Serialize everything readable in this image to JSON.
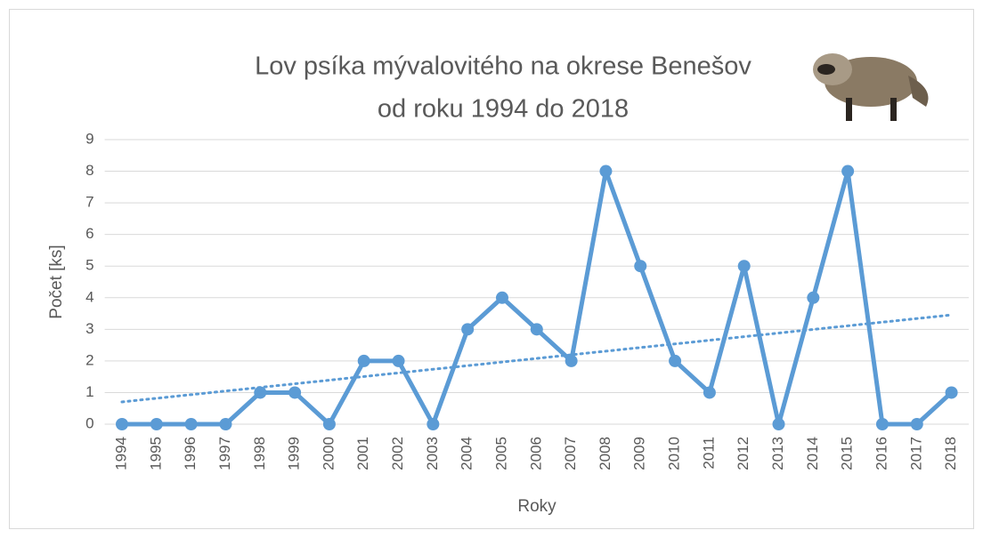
{
  "chart_data": {
    "type": "line",
    "title": [
      "Lov psíka mývalovitého na okrese Benešov",
      "od roku 1994 do 2018"
    ],
    "x_label": "Roky",
    "y_label": "Počet [ks]",
    "categories": [
      "1994",
      "1995",
      "1996",
      "1997",
      "1998",
      "1999",
      "2000",
      "2001",
      "2002",
      "2003",
      "2004",
      "2005",
      "2006",
      "2007",
      "2008",
      "2009",
      "2010",
      "2011",
      "2012",
      "2013",
      "2014",
      "2015",
      "2016",
      "2017",
      "2018"
    ],
    "series": [
      {
        "color": "#5b9bd5",
        "values": [
          0,
          0,
          0,
          0,
          1,
          1,
          0,
          2,
          2,
          0,
          3,
          4,
          3,
          2,
          8,
          5,
          2,
          1,
          5,
          0,
          4,
          8,
          0,
          0,
          1
        ]
      }
    ],
    "trendline": "linear",
    "ylim": [
      0,
      9
    ],
    "yticks": [
      0,
      1,
      2,
      3,
      4,
      5,
      6,
      7,
      8,
      9
    ],
    "grid": true
  }
}
